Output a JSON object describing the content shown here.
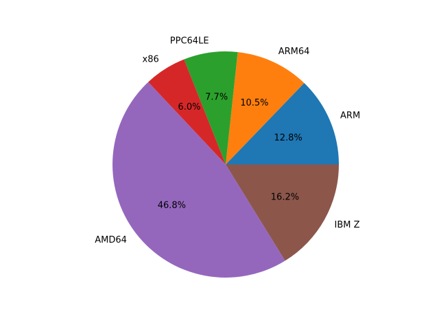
{
  "chart_data": {
    "type": "pie",
    "title": "",
    "start_angle_deg": 0,
    "direction": "counterclockwise",
    "slices": [
      {
        "label": "ARM",
        "pct_label": "12.8%",
        "value": 12.8,
        "color": "#1f77b4"
      },
      {
        "label": "ARM64",
        "pct_label": "10.5%",
        "value": 10.5,
        "color": "#ff7f0e"
      },
      {
        "label": "PPC64LE",
        "pct_label": "7.7%",
        "value": 7.7,
        "color": "#2ca02c"
      },
      {
        "label": "x86",
        "pct_label": "6.0%",
        "value": 6.0,
        "color": "#d62728"
      },
      {
        "label": "AMD64",
        "pct_label": "46.8%",
        "value": 46.8,
        "color": "#9467bd"
      },
      {
        "label": "IBM Z",
        "pct_label": "16.2%",
        "value": 16.2,
        "color": "#8c564b"
      }
    ]
  }
}
